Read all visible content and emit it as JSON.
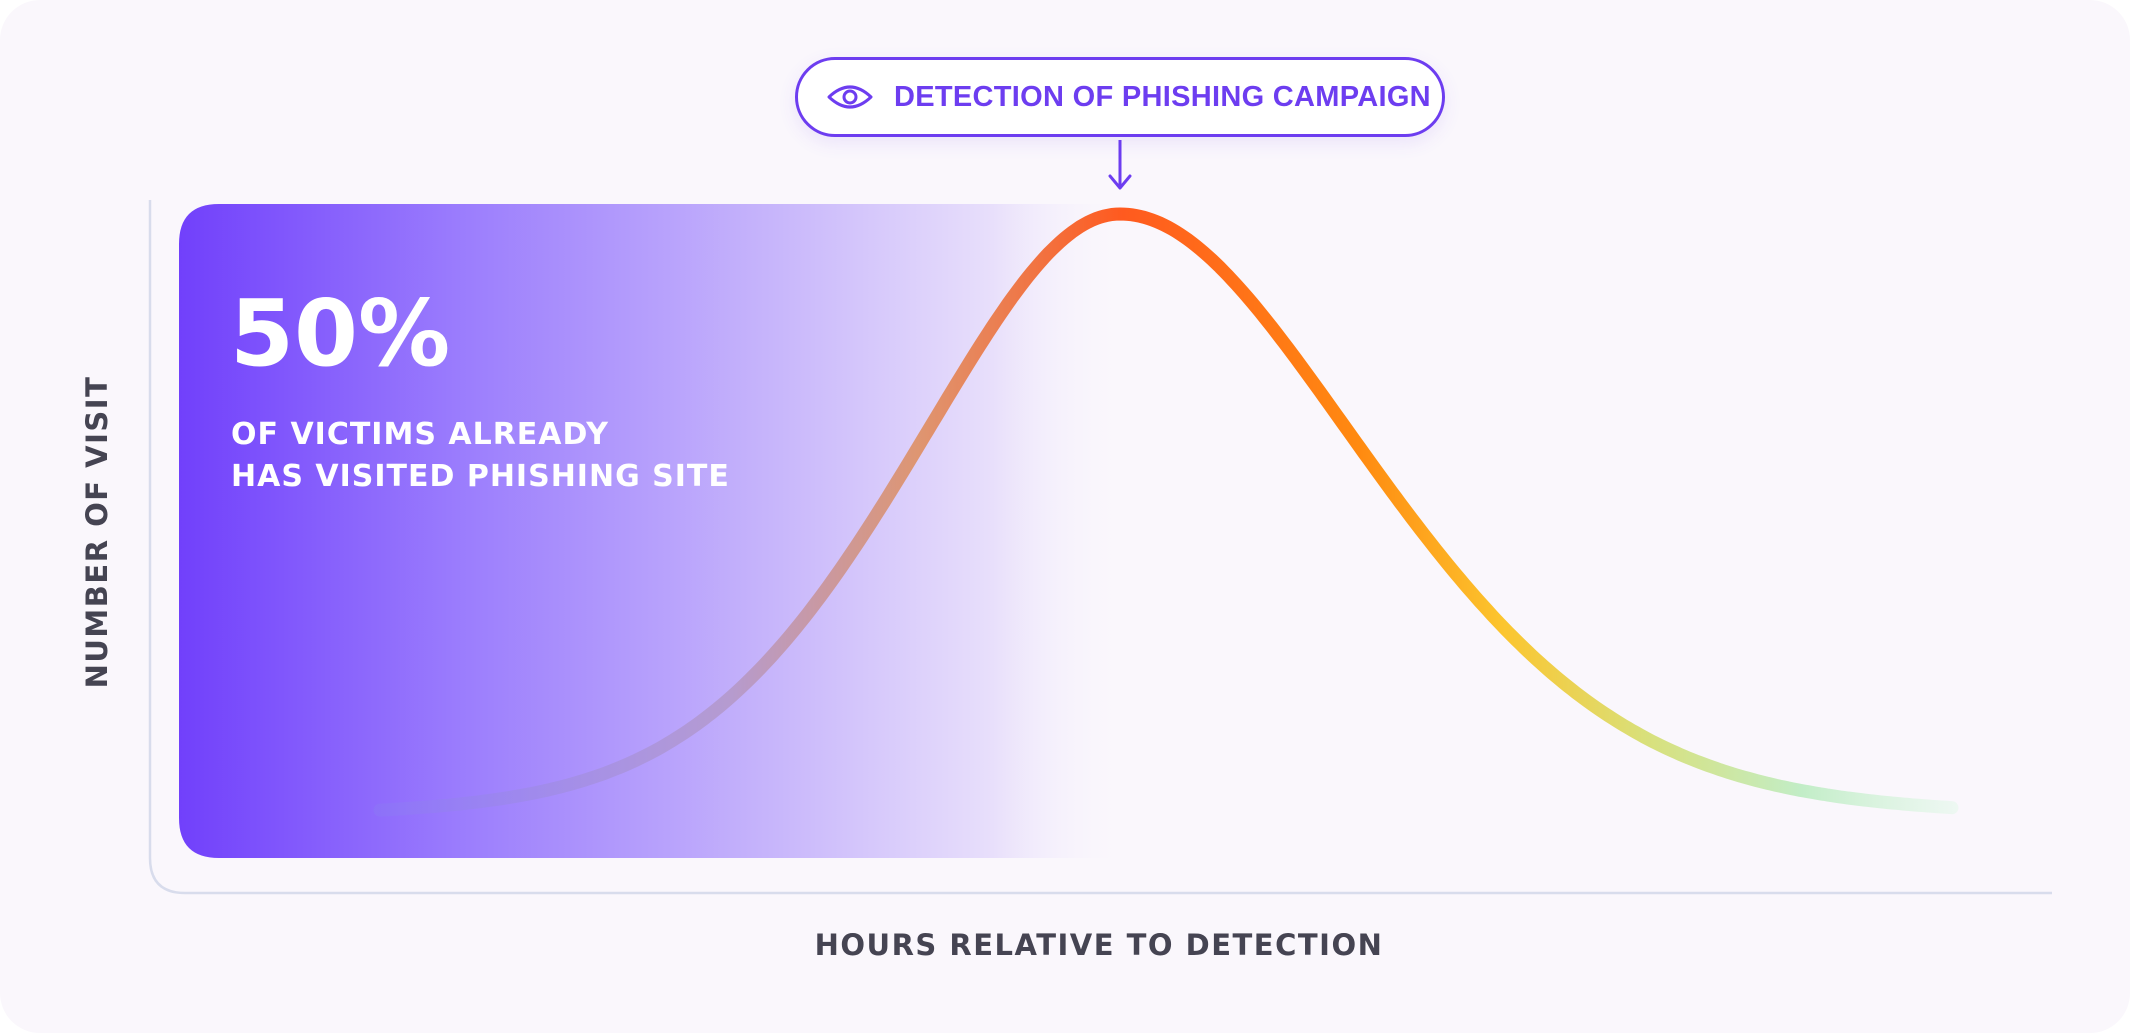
{
  "chart_data": {
    "type": "area",
    "title": "",
    "xlabel": "HOURS RELATIVE TO DETECTION",
    "ylabel": "NUMBER OF VISIT",
    "annotation": "DETECTION OF PHISHING CAMPAIGN",
    "annotation_icon": "eye-icon",
    "highlight": {
      "value": "50%",
      "caption_lines": [
        "OF VICTIMS ALREADY",
        "HAS VISITED PHISHING SITE"
      ]
    },
    "grid": false,
    "curve": {
      "shape": "bell",
      "detection_at": "peak",
      "colors": [
        "#8a7df2",
        "#d99a7a",
        "#ff5a1f",
        "#ff8a10",
        "#fcc52e",
        "#d9e07a",
        "#bfecc8",
        "#e8f8ef"
      ]
    },
    "colors": {
      "accent": "#6d3df0",
      "shaded_region_start": "#7140fb",
      "peak": "#ff5a1f"
    }
  }
}
